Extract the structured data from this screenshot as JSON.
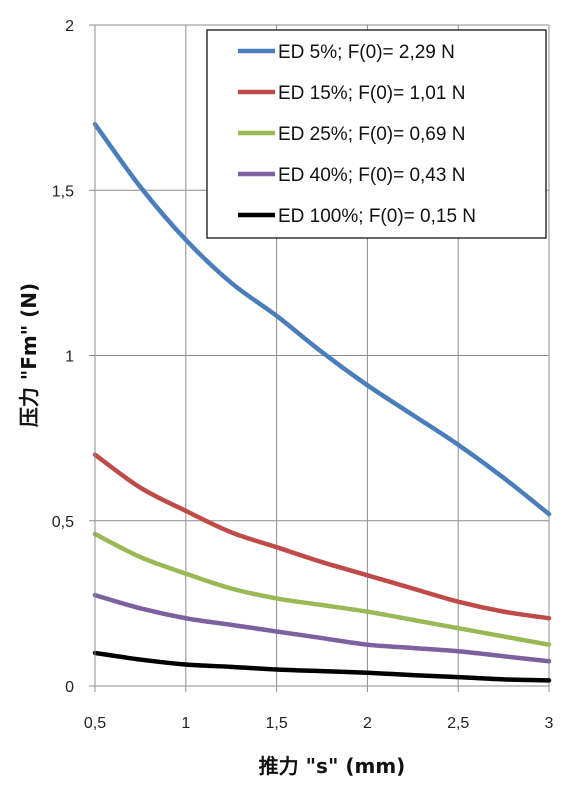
{
  "chart_data": {
    "type": "line",
    "xlabel": "推力 \"s\" (mm)",
    "ylabel": "压力 \"Fm\" (N)",
    "xlim": [
      0.5,
      3
    ],
    "ylim": [
      0,
      2
    ],
    "x_ticks": [
      "0,5",
      "1",
      "1,5",
      "2",
      "2,5",
      "3"
    ],
    "y_ticks": [
      "0",
      "0,5",
      "1",
      "1,5",
      "2"
    ],
    "grid": true,
    "legend_position": "top-right",
    "x": [
      0.5,
      0.75,
      1.0,
      1.25,
      1.5,
      1.75,
      2.0,
      2.25,
      2.5,
      2.75,
      3.0
    ],
    "series": [
      {
        "name": "ED 5%; F(0)= 2,29 N",
        "color": "#4a7ebb",
        "values": [
          1.7,
          1.51,
          1.35,
          1.22,
          1.12,
          1.01,
          0.91,
          0.82,
          0.73,
          0.63,
          0.52
        ]
      },
      {
        "name": "ED 15%; F(0)= 1,01 N",
        "color": "#be4b48",
        "values": [
          0.7,
          0.6,
          0.53,
          0.465,
          0.42,
          0.375,
          0.335,
          0.295,
          0.255,
          0.225,
          0.205
        ]
      },
      {
        "name": "ED 25%; F(0)= 0,69 N",
        "color": "#98b954",
        "values": [
          0.46,
          0.39,
          0.34,
          0.295,
          0.265,
          0.245,
          0.225,
          0.2,
          0.175,
          0.15,
          0.125
        ]
      },
      {
        "name": "ED 40%; F(0)= 0,43 N",
        "color": "#7d60a0",
        "values": [
          0.275,
          0.235,
          0.205,
          0.185,
          0.165,
          0.145,
          0.125,
          0.115,
          0.105,
          0.09,
          0.075
        ]
      },
      {
        "name": "ED 100%; F(0)= 0,15 N",
        "color": "#000000",
        "values": [
          0.1,
          0.08,
          0.065,
          0.058,
          0.05,
          0.045,
          0.04,
          0.033,
          0.027,
          0.02,
          0.017
        ]
      }
    ]
  }
}
